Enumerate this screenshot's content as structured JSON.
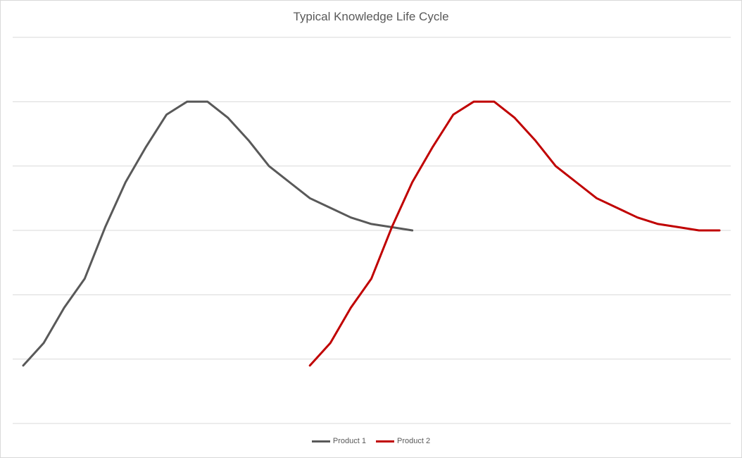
{
  "chart_data": {
    "type": "line",
    "title": "Typical Knowledge Life Cycle",
    "xlabel": "",
    "ylabel": "",
    "x": [
      1,
      2,
      3,
      4,
      5,
      6,
      7,
      8,
      9,
      10,
      11,
      12,
      13,
      14,
      15,
      16,
      17,
      18,
      19,
      20,
      21,
      22,
      23,
      24,
      25,
      26,
      27,
      28,
      29,
      30,
      31,
      32,
      33,
      34,
      35
    ],
    "ylim": [
      -1,
      5
    ],
    "gridlines_y": [
      -1,
      0,
      1,
      2,
      3,
      4,
      5
    ],
    "grid": true,
    "legend_position": "bottom",
    "series": [
      {
        "name": "Product 1",
        "color": "#595959",
        "values": [
          -0.1,
          0.25,
          0.8,
          1.25,
          2.05,
          2.75,
          3.3,
          3.8,
          4.0,
          4.0,
          3.75,
          3.4,
          3.0,
          2.75,
          2.5,
          2.35,
          2.2,
          2.1,
          2.05,
          2.0,
          null,
          null,
          null,
          null,
          null,
          null,
          null,
          null,
          null,
          null,
          null,
          null,
          null,
          null,
          null
        ]
      },
      {
        "name": "Product 2",
        "color": "#c00000",
        "values": [
          null,
          null,
          null,
          null,
          null,
          null,
          null,
          null,
          null,
          null,
          null,
          null,
          null,
          null,
          -0.1,
          0.25,
          0.8,
          1.25,
          2.05,
          2.75,
          3.3,
          3.8,
          4.0,
          4.0,
          3.75,
          3.4,
          3.0,
          2.75,
          2.5,
          2.35,
          2.2,
          2.1,
          2.05,
          2.0,
          2.0
        ]
      }
    ]
  }
}
